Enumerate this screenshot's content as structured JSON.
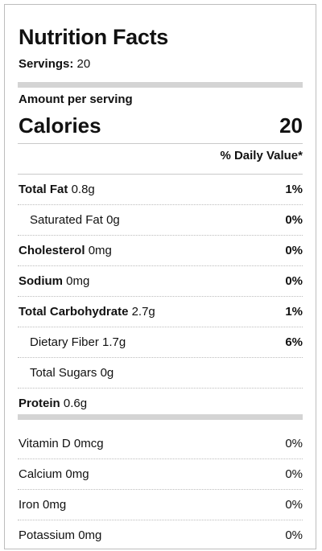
{
  "title": "Nutrition Facts",
  "servings": {
    "label": "Servings:",
    "value": "20"
  },
  "amount_per_serving": "Amount per serving",
  "calories": {
    "label": "Calories",
    "value": "20"
  },
  "daily_value_header": "% Daily Value*",
  "nutrients": [
    {
      "name": "Total Fat",
      "amount": "0.8g",
      "dv": "1%"
    },
    {
      "name": "Saturated Fat",
      "amount": "0g",
      "dv": "0%"
    },
    {
      "name": "Cholesterol",
      "amount": "0mg",
      "dv": "0%"
    },
    {
      "name": "Sodium",
      "amount": "0mg",
      "dv": "0%"
    },
    {
      "name": "Total Carbohydrate",
      "amount": "2.7g",
      "dv": "1%"
    },
    {
      "name": "Dietary Fiber",
      "amount": "1.7g",
      "dv": "6%"
    },
    {
      "name": "Total Sugars",
      "amount": "0g",
      "dv": ""
    },
    {
      "name": "Protein",
      "amount": "0.6g",
      "dv": ""
    }
  ],
  "vitamins": [
    {
      "name": "Vitamin D",
      "amount": "0mcg",
      "dv": "0%"
    },
    {
      "name": "Calcium",
      "amount": "0mg",
      "dv": "0%"
    },
    {
      "name": "Iron",
      "amount": "0mg",
      "dv": "0%"
    },
    {
      "name": "Potassium",
      "amount": "0mg",
      "dv": "0%"
    }
  ]
}
